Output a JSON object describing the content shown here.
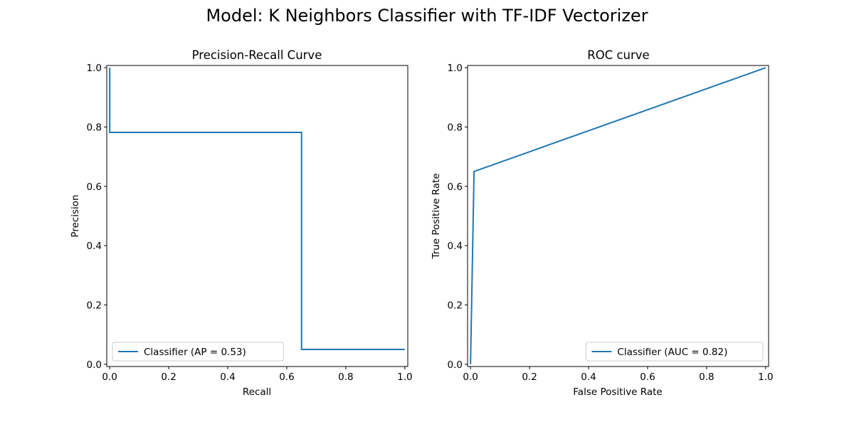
{
  "figure_title": "Model: K Neighbors Classifier with TF-IDF Vectorizer",
  "colors": {
    "series": "#1f77b4",
    "background": "#ffffff",
    "axes": "#000000"
  },
  "chart_data": [
    {
      "type": "line",
      "title": "Precision-Recall Curve",
      "xlabel": "Recall",
      "ylabel": "Precision",
      "xlim": [
        -0.01,
        1.01
      ],
      "ylim": [
        -0.0075,
        1.0075
      ],
      "xticks": [
        0.0,
        0.2,
        0.4,
        0.6,
        0.8,
        1.0
      ],
      "xtick_labels": [
        "0.0",
        "0.2",
        "0.4",
        "0.6",
        "0.8",
        "1.0"
      ],
      "yticks": [
        0.0,
        0.2,
        0.4,
        0.6,
        0.8,
        1.0
      ],
      "ytick_labels": [
        "0.0",
        "0.2",
        "0.4",
        "0.6",
        "0.8",
        "1.0"
      ],
      "grid": false,
      "legend_position": "lower-left",
      "series": [
        {
          "name": "Classifier (AP = 0.53)",
          "drawstyle": "steps-post",
          "x": [
            1.0,
            0.65,
            0.65,
            0.0,
            0.0
          ],
          "y": [
            0.05,
            0.05,
            0.782,
            0.782,
            1.0
          ]
        }
      ]
    },
    {
      "type": "line",
      "title": "ROC curve",
      "xlabel": "False Positive Rate",
      "ylabel": "True Positive Rate",
      "xlim": [
        -0.01,
        1.01
      ],
      "ylim": [
        -0.0075,
        1.0075
      ],
      "xticks": [
        0.0,
        0.2,
        0.4,
        0.6,
        0.8,
        1.0
      ],
      "xtick_labels": [
        "0.0",
        "0.2",
        "0.4",
        "0.6",
        "0.8",
        "1.0"
      ],
      "yticks": [
        0.0,
        0.2,
        0.4,
        0.6,
        0.8,
        1.0
      ],
      "ytick_labels": [
        "0.0",
        "0.2",
        "0.4",
        "0.6",
        "0.8",
        "1.0"
      ],
      "grid": false,
      "legend_position": "lower-right",
      "series": [
        {
          "name": "Classifier (AUC = 0.82)",
          "drawstyle": "default",
          "x": [
            0.0,
            0.0,
            0.012,
            1.0
          ],
          "y": [
            0.0,
            0.0,
            0.65,
            1.0
          ]
        }
      ]
    }
  ]
}
